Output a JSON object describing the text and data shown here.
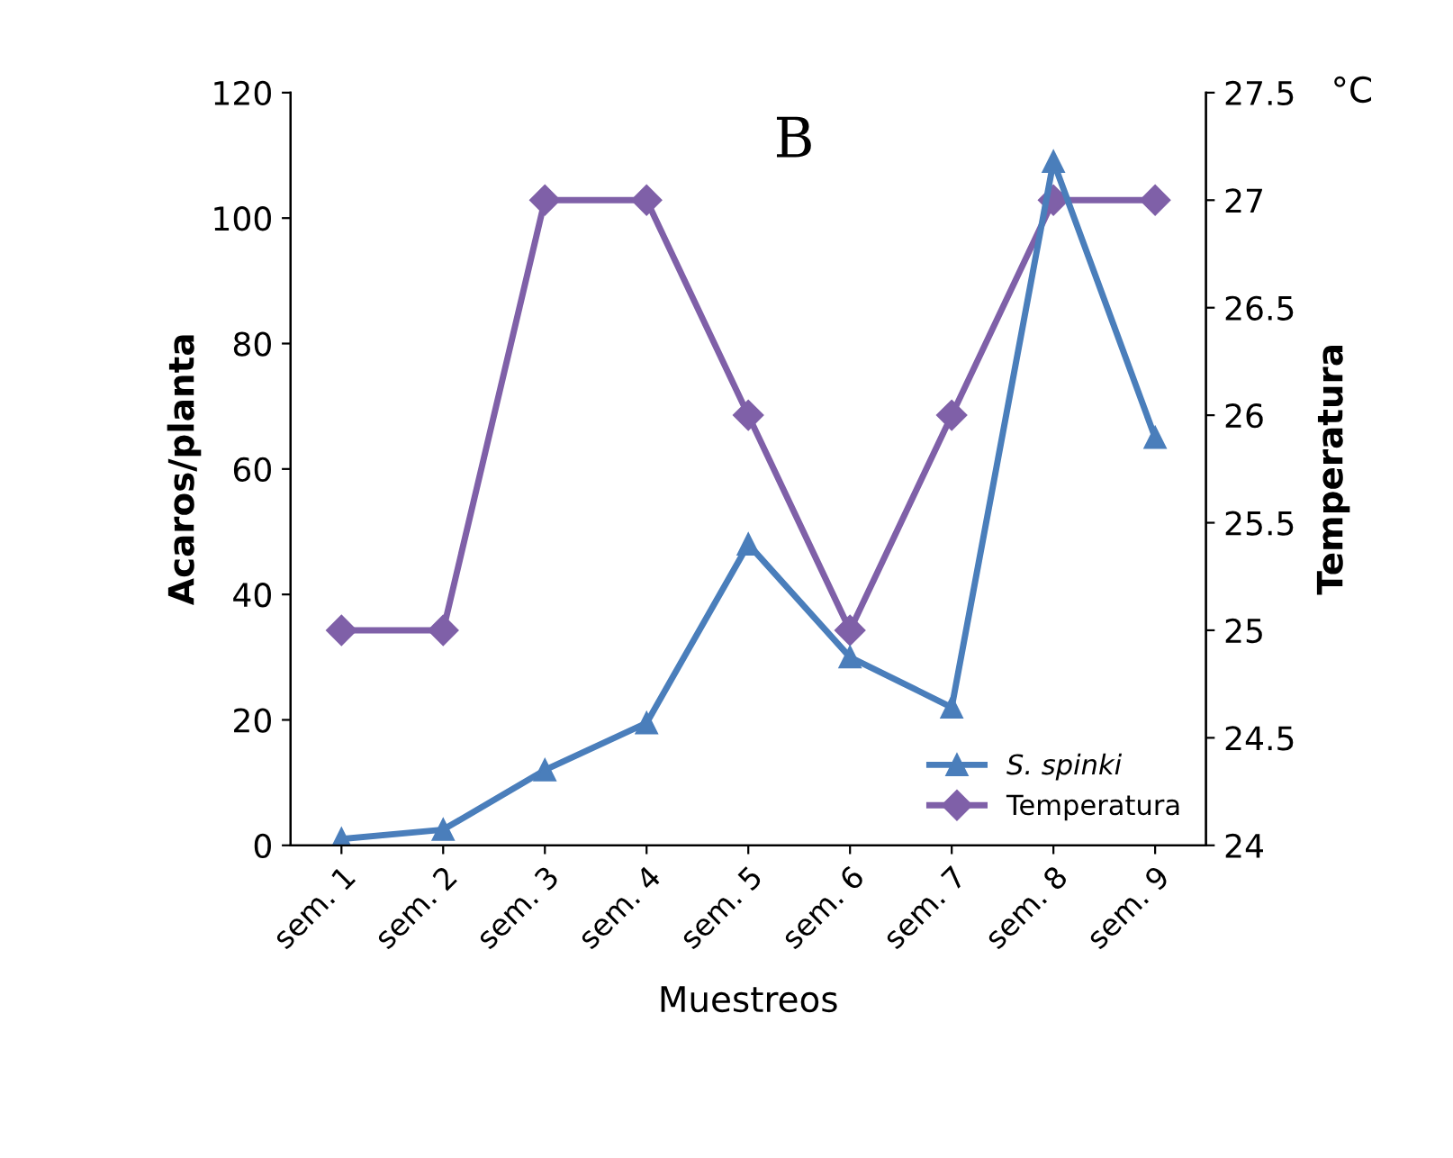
{
  "chart_data": {
    "type": "line",
    "title": "B",
    "xlabel": "Muestreos",
    "ylabel": "Acaros/planta",
    "y2label": "Temperatura",
    "annotations": [
      "°C"
    ],
    "categories": [
      "sem. 1",
      "sem. 2",
      "sem. 3",
      "sem. 4",
      "sem. 5",
      "sem. 6",
      "sem. 7",
      "sem. 8",
      "sem. 9"
    ],
    "series": [
      {
        "name": "S. spinki",
        "color": "#4a7ebb",
        "marker": "triangle",
        "values": [
          1,
          2.5,
          12,
          19.5,
          48,
          30,
          22,
          109,
          65
        ]
      },
      {
        "name": "Temperatura",
        "color": "#7f60a8",
        "marker": "diamond",
        "axis": "y2",
        "values": [
          25,
          25,
          27,
          27,
          26,
          25,
          26,
          27,
          27
        ]
      }
    ],
    "ylim": [
      0,
      120
    ],
    "yticks": [
      0,
      20,
      40,
      60,
      80,
      100,
      120
    ],
    "y2lim": [
      24,
      27.5
    ],
    "y2ticks": [
      24,
      24.5,
      25,
      25.5,
      26,
      26.5,
      27,
      27.5
    ],
    "grid": false,
    "legend": "bottom right",
    "line_style": "solid"
  }
}
